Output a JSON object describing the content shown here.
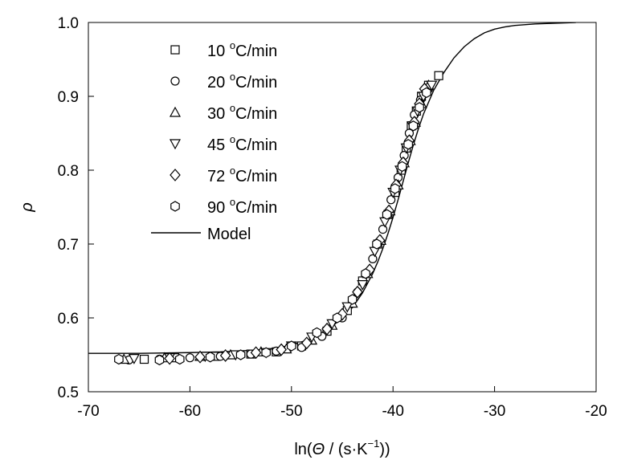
{
  "chart_data": {
    "type": "scatter",
    "xlabel_parts": {
      "prefix": "ln(",
      "symbol": "Θ",
      "mid": " / (s·K",
      "sup": "−1",
      "suffix": "))"
    },
    "ylabel": "ρ",
    "xlim": [
      -70,
      -20
    ],
    "ylim": [
      0.5,
      1.0
    ],
    "xticks": [
      -70,
      -60,
      -50,
      -40,
      -30,
      -20
    ],
    "yticks": [
      0.5,
      0.6,
      0.7,
      0.8,
      0.9,
      1.0
    ],
    "xtick_labels": [
      "-70",
      "-60",
      "-50",
      "-40",
      "-30",
      "-20"
    ],
    "ytick_labels": [
      "0.5",
      "0.6",
      "0.7",
      "0.8",
      "0.9",
      "1.0"
    ],
    "legend_position": "top-left",
    "series": [
      {
        "name": "10 °C/min",
        "rate": "10",
        "unit_sup": "o",
        "unit_rest": "C/min",
        "marker": "square",
        "x": [
          -64.5,
          -61.5,
          -57.5,
          -54.0,
          -51.5,
          -49.0,
          -46.5,
          -44.5,
          -43.0,
          -41.5,
          -40.5,
          -39.8,
          -39.2,
          -38.7,
          -38.2,
          -37.7,
          -37.2,
          -36.5,
          -35.5
        ],
        "y": [
          0.544,
          0.546,
          0.548,
          0.551,
          0.554,
          0.562,
          0.582,
          0.61,
          0.65,
          0.7,
          0.74,
          0.77,
          0.8,
          0.83,
          0.86,
          0.88,
          0.9,
          0.915,
          0.928
        ]
      },
      {
        "name": "20 °C/min",
        "rate": "20",
        "unit_sup": "o",
        "unit_rest": "C/min",
        "marker": "circle",
        "x": [
          -66.0,
          -63.0,
          -60.0,
          -57.0,
          -54.0,
          -51.5,
          -49.0,
          -47.0,
          -45.0,
          -43.5,
          -42.0,
          -41.0,
          -40.2,
          -39.5,
          -38.9,
          -38.4,
          -37.9,
          -37.3,
          -36.5
        ],
        "y": [
          0.543,
          0.544,
          0.546,
          0.548,
          0.551,
          0.555,
          0.56,
          0.575,
          0.6,
          0.635,
          0.68,
          0.72,
          0.76,
          0.79,
          0.82,
          0.85,
          0.875,
          0.895,
          0.91
        ]
      },
      {
        "name": "30 °C/min",
        "rate": "30",
        "unit_sup": "o",
        "unit_rest": "C/min",
        "marker": "triangle-up",
        "x": [
          -66.5,
          -62.5,
          -59.0,
          -56.0,
          -53.0,
          -50.5,
          -48.0,
          -46.0,
          -44.0,
          -42.5,
          -41.2,
          -40.3,
          -39.5,
          -38.9,
          -38.3,
          -37.8,
          -37.2,
          -36.5
        ],
        "y": [
          0.544,
          0.546,
          0.548,
          0.55,
          0.554,
          0.558,
          0.57,
          0.59,
          0.62,
          0.66,
          0.705,
          0.745,
          0.78,
          0.81,
          0.84,
          0.865,
          0.89,
          0.915
        ]
      },
      {
        "name": "45 °C/min",
        "rate": "45",
        "unit_sup": "o",
        "unit_rest": "C/min",
        "marker": "triangle-down",
        "x": [
          -65.5,
          -62.0,
          -58.5,
          -55.5,
          -52.5,
          -50.0,
          -48.0,
          -46.0,
          -44.5,
          -43.0,
          -41.8,
          -40.8,
          -40.0,
          -39.3,
          -38.7,
          -38.1,
          -37.6,
          -37.0,
          -36.2
        ],
        "y": [
          0.545,
          0.546,
          0.548,
          0.55,
          0.553,
          0.562,
          0.574,
          0.592,
          0.615,
          0.645,
          0.69,
          0.73,
          0.77,
          0.8,
          0.83,
          0.86,
          0.88,
          0.9,
          0.915
        ]
      },
      {
        "name": "72 °C/min",
        "rate": "72",
        "unit_sup": "o",
        "unit_rest": "C/min",
        "marker": "diamond",
        "x": [
          -62.0,
          -59.0,
          -56.5,
          -53.5,
          -51.0,
          -48.5,
          -46.5,
          -45.0,
          -43.5,
          -42.3,
          -41.3,
          -40.4,
          -39.7,
          -39.0,
          -38.4,
          -37.9,
          -37.4,
          -36.9
        ],
        "y": [
          0.545,
          0.547,
          0.549,
          0.553,
          0.557,
          0.566,
          0.585,
          0.605,
          0.635,
          0.665,
          0.705,
          0.745,
          0.78,
          0.81,
          0.84,
          0.865,
          0.89,
          0.91
        ]
      },
      {
        "name": "90 °C/min",
        "rate": "90",
        "unit_sup": "o",
        "unit_rest": "C/min",
        "marker": "hexagon",
        "x": [
          -67.0,
          -63.0,
          -61.0,
          -58.0,
          -55.0,
          -52.5,
          -50.0,
          -47.5,
          -45.5,
          -44.0,
          -42.7,
          -41.6,
          -40.6,
          -39.8,
          -39.1,
          -38.5,
          -38.0,
          -37.4,
          -36.7
        ],
        "y": [
          0.544,
          0.543,
          0.544,
          0.547,
          0.55,
          0.553,
          0.562,
          0.58,
          0.6,
          0.625,
          0.66,
          0.7,
          0.74,
          0.775,
          0.805,
          0.835,
          0.86,
          0.885,
          0.905
        ]
      }
    ],
    "model": {
      "name": "Model",
      "x": [
        -70,
        -65,
        -60,
        -57,
        -54,
        -52,
        -50,
        -48,
        -46,
        -44,
        -43,
        -42,
        -41.5,
        -41,
        -40.5,
        -40,
        -39.5,
        -39,
        -38.5,
        -38,
        -37.5,
        -37,
        -36,
        -35,
        -34,
        -33,
        -32,
        -31,
        -30,
        -29,
        -28,
        -26,
        -24,
        -22
      ],
      "y": [
        0.552,
        0.552,
        0.553,
        0.554,
        0.556,
        0.558,
        0.563,
        0.572,
        0.588,
        0.614,
        0.634,
        0.66,
        0.676,
        0.694,
        0.714,
        0.736,
        0.76,
        0.785,
        0.81,
        0.834,
        0.856,
        0.876,
        0.908,
        0.932,
        0.952,
        0.967,
        0.978,
        0.986,
        0.991,
        0.994,
        0.996,
        0.998,
        0.999,
        1.0
      ]
    }
  }
}
